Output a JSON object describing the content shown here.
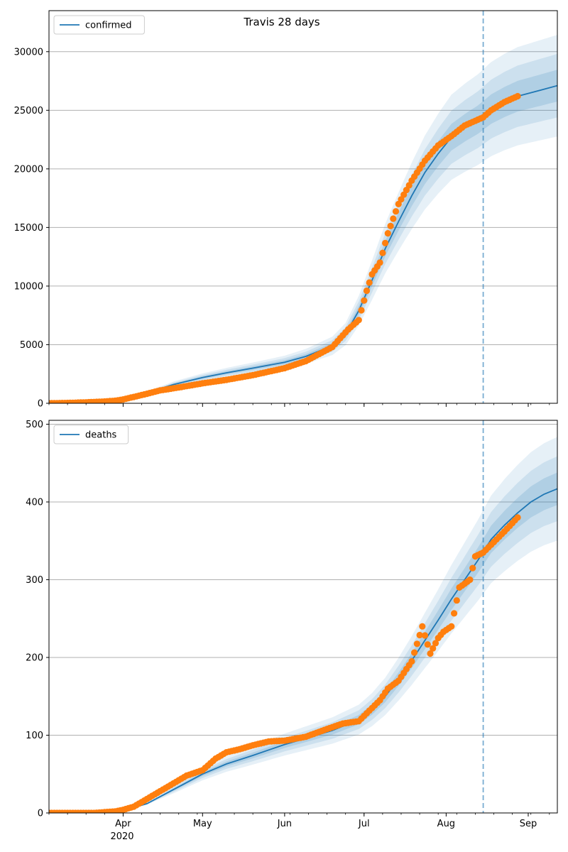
{
  "figure": {
    "title": "Travis 28 days",
    "colors": {
      "model": "#1f77b4",
      "observed": "#ff7f0e",
      "band": "#1f77b4",
      "grid": "#b0b0b0"
    }
  },
  "x_axis": {
    "tick_labels": [
      "Apr",
      "May",
      "Jun",
      "Jul",
      "Aug",
      "Sep"
    ],
    "tick_days": [
      31,
      61,
      92,
      122,
      153,
      184
    ],
    "year_label": "2020",
    "range_days": [
      3,
      195
    ]
  },
  "chart_data": [
    {
      "type": "line",
      "panel": "top",
      "legend": "confirmed",
      "legend_position": "top-left",
      "grid": "horizontal",
      "ylim": [
        0,
        33500
      ],
      "y_ticks": [
        0,
        5000,
        10000,
        15000,
        20000,
        25000,
        30000
      ],
      "forecast_start_day": 167,
      "observed": {
        "x": [
          3,
          10,
          17,
          24,
          28,
          31,
          38,
          45,
          52,
          61,
          70,
          80,
          92,
          100,
          110,
          116,
          120,
          123,
          125,
          128,
          131,
          135,
          140,
          145,
          150,
          155,
          160,
          165,
          167,
          170,
          175,
          180
        ],
        "y": [
          0,
          30,
          80,
          150,
          220,
          330,
          700,
          1100,
          1350,
          1700,
          2000,
          2400,
          3000,
          3600,
          4800,
          6300,
          7100,
          9600,
          11000,
          12000,
          14500,
          17000,
          19000,
          20700,
          22000,
          22800,
          23700,
          24200,
          24400,
          25000,
          25700,
          26200
        ]
      },
      "model": {
        "x": [
          3,
          20,
          31,
          40,
          50,
          61,
          70,
          80,
          92,
          100,
          110,
          115,
          120,
          125,
          130,
          135,
          140,
          145,
          150,
          155,
          160,
          165,
          170,
          175,
          180,
          185,
          190,
          195
        ],
        "y": [
          0,
          60,
          350,
          900,
          1600,
          2200,
          2600,
          3000,
          3500,
          4000,
          4900,
          5900,
          7900,
          10500,
          13200,
          15500,
          17700,
          19700,
          21300,
          22700,
          23500,
          24200,
          25100,
          25700,
          26200,
          26500,
          26800,
          27100
        ]
      },
      "band_widths": [
        0.16,
        0.1,
        0.05
      ]
    },
    {
      "type": "line",
      "panel": "bottom",
      "legend": "deaths",
      "legend_position": "top-left",
      "grid": "horizontal",
      "ylim": [
        0,
        505
      ],
      "y_ticks": [
        0,
        100,
        200,
        300,
        400,
        500
      ],
      "forecast_start_day": 167,
      "observed": {
        "x": [
          3,
          20,
          28,
          31,
          35,
          40,
          45,
          50,
          55,
          61,
          66,
          70,
          75,
          80,
          86,
          92,
          100,
          108,
          114,
          120,
          125,
          128,
          131,
          135,
          140,
          144,
          147,
          150,
          152,
          155,
          158,
          162,
          164,
          167,
          170,
          175,
          180
        ],
        "y": [
          0,
          0,
          2,
          4,
          8,
          18,
          28,
          38,
          48,
          55,
          70,
          78,
          82,
          87,
          92,
          93,
          98,
          108,
          115,
          118,
          135,
          145,
          160,
          170,
          195,
          240,
          205,
          225,
          233,
          240,
          290,
          300,
          330,
          335,
          345,
          362,
          380
        ]
      },
      "model": {
        "x": [
          3,
          20,
          31,
          40,
          50,
          61,
          70,
          80,
          92,
          100,
          110,
          120,
          125,
          130,
          135,
          140,
          145,
          150,
          155,
          160,
          165,
          170,
          175,
          180,
          185,
          190,
          195
        ],
        "y": [
          0,
          0,
          3,
          12,
          30,
          50,
          63,
          74,
          88,
          96,
          106,
          120,
          133,
          150,
          172,
          196,
          222,
          248,
          275,
          300,
          325,
          352,
          370,
          386,
          400,
          410,
          417
        ]
      },
      "band_widths": [
        0.16,
        0.1,
        0.05
      ]
    }
  ]
}
